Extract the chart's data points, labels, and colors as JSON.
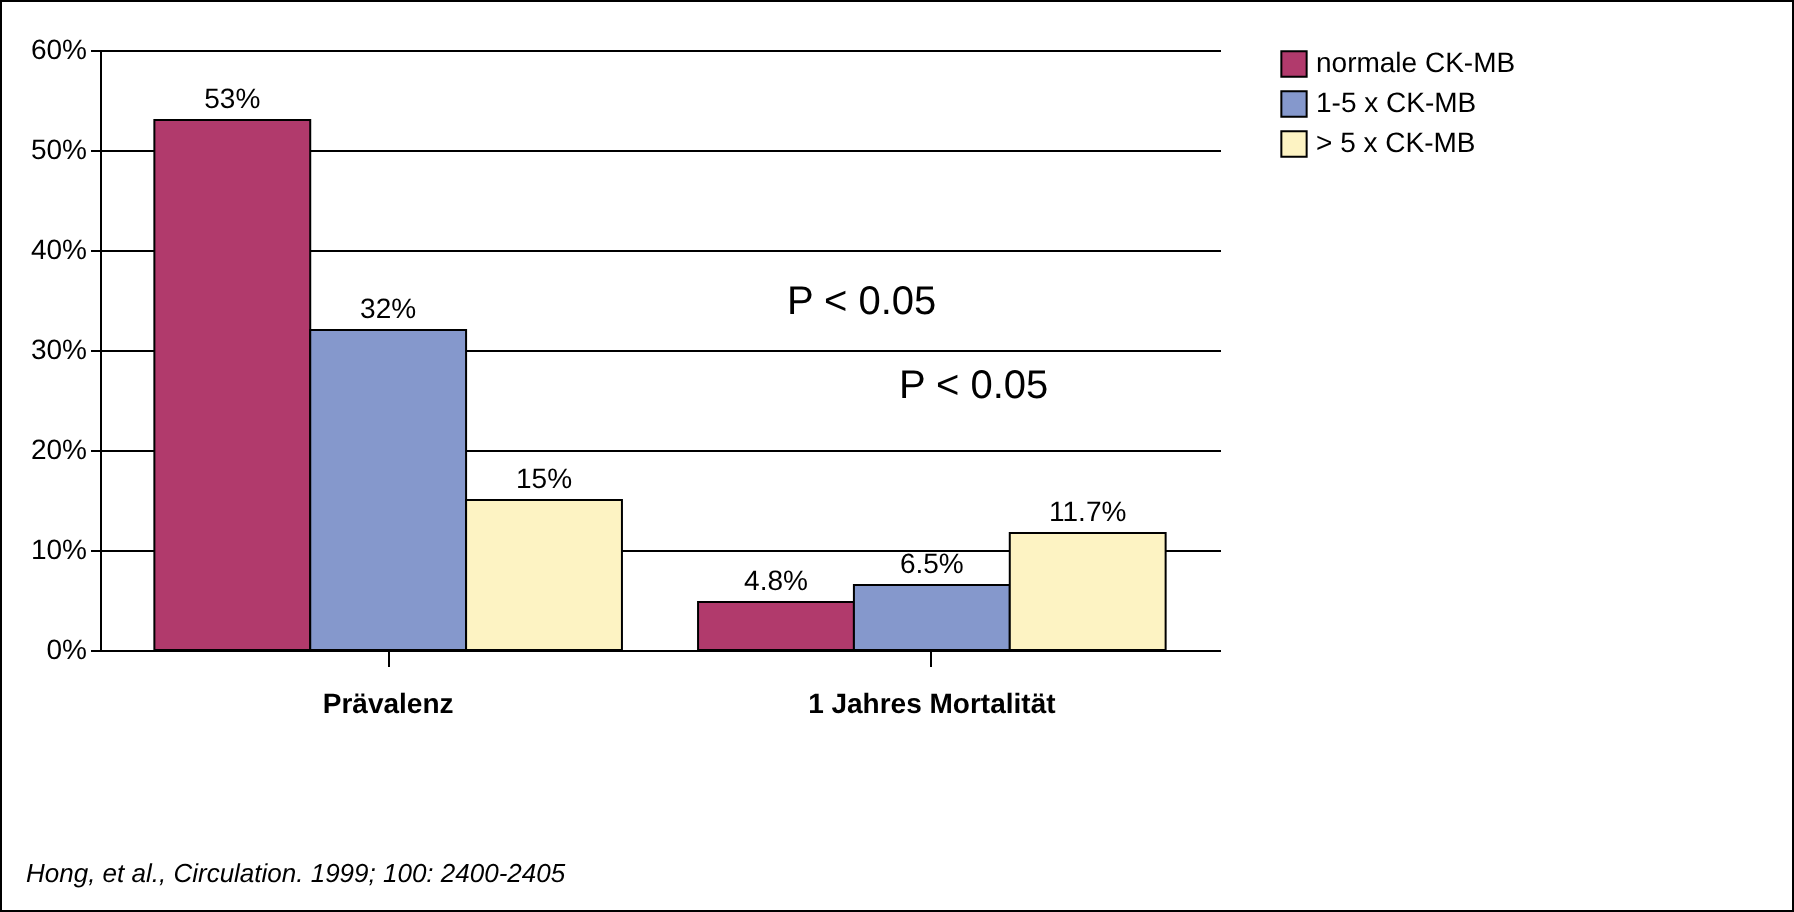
{
  "chart_data": {
    "type": "bar",
    "categories": [
      "Prävalenz",
      "1 Jahres Mortalität"
    ],
    "series": [
      {
        "name": "normale CK-MB",
        "color": "#b13a6c",
        "values": [
          53,
          4.8
        ],
        "value_labels": [
          "53%",
          "4.8%"
        ]
      },
      {
        "name": "1-5 x CK-MB",
        "color": "#8598cc",
        "values": [
          32,
          6.5
        ],
        "value_labels": [
          "32%",
          "6.5%"
        ]
      },
      {
        "name": "> 5 x CK-MB",
        "color": "#fdf3c3",
        "values": [
          15,
          11.7
        ],
        "value_labels": [
          "15%",
          "11.7%"
        ]
      }
    ],
    "ylim": [
      0,
      60
    ],
    "yticks": [
      {
        "value": 0,
        "label": "0%"
      },
      {
        "value": 10,
        "label": "10%"
      },
      {
        "value": 20,
        "label": "20%"
      },
      {
        "value": 30,
        "label": "30%"
      },
      {
        "value": 40,
        "label": "40%"
      },
      {
        "value": 50,
        "label": "50%"
      },
      {
        "value": 60,
        "label": "60%"
      }
    ],
    "grid": "y",
    "legend": "right",
    "annotations": [
      "P < 0.05",
      "P < 0.05",
      "Hong, et al., Circulation. 1999; 100: 2400-2405"
    ]
  }
}
